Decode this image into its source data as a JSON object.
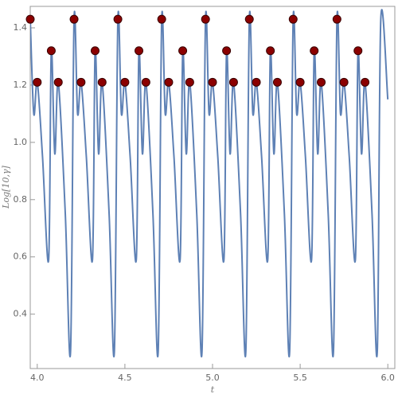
{
  "chart_data": {
    "type": "line",
    "xlabel": "t",
    "ylabel": "Log[10,γ]",
    "xlim": [
      3.96,
      6.04
    ],
    "ylim": [
      0.21,
      1.475
    ],
    "xticks": [
      {
        "value": 4,
        "label": "4.0"
      },
      {
        "value": 4.5,
        "label": "4.5"
      },
      {
        "value": 5,
        "label": "5.0"
      },
      {
        "value": 5.5,
        "label": "5.5"
      },
      {
        "value": 6,
        "label": "6.0"
      }
    ],
    "yticks": [
      0.4,
      0.6,
      0.8,
      {
        "value": 1,
        "label": "1.0"
      },
      1.2,
      1.4
    ],
    "series": [
      {
        "type": "line",
        "color": "#5e81b5",
        "x": [
          3.96,
          3.98,
          4.0,
          4.03,
          4.065,
          4.08,
          4.1,
          4.12,
          4.16,
          4.19,
          4.21,
          4.23,
          4.25,
          4.28,
          4.315,
          4.33,
          4.35,
          4.37,
          4.41,
          4.44,
          4.46,
          4.48,
          4.5,
          4.53,
          4.565,
          4.58,
          4.6,
          4.62,
          4.66,
          4.69,
          4.71,
          4.73,
          4.75,
          4.78,
          4.815,
          4.83,
          4.85,
          4.87,
          4.91,
          4.94,
          4.96,
          4.98,
          5.0,
          5.03,
          5.065,
          5.08,
          5.1,
          5.12,
          5.16,
          5.19,
          5.21,
          5.23,
          5.25,
          5.28,
          5.315,
          5.33,
          5.35,
          5.37,
          5.41,
          5.44,
          5.46,
          5.48,
          5.5,
          5.53,
          5.565,
          5.58,
          5.6,
          5.62,
          5.66,
          5.69,
          5.71,
          5.73,
          5.75,
          5.78,
          5.815,
          5.83,
          5.85,
          5.87,
          5.91,
          5.94,
          5.96,
          6.0
        ],
        "values": [
          1.43,
          1.1,
          1.21,
          0.95,
          0.59,
          1.32,
          0.96,
          1.21,
          0.75,
          0.27,
          1.43,
          1.1,
          1.21,
          0.95,
          0.59,
          1.32,
          0.96,
          1.21,
          0.75,
          0.27,
          1.43,
          1.1,
          1.21,
          0.95,
          0.59,
          1.32,
          0.96,
          1.21,
          0.75,
          0.27,
          1.43,
          1.1,
          1.21,
          0.95,
          0.59,
          1.32,
          0.96,
          1.21,
          0.75,
          0.27,
          1.43,
          1.1,
          1.21,
          0.95,
          0.59,
          1.32,
          0.96,
          1.21,
          0.75,
          0.27,
          1.43,
          1.1,
          1.21,
          0.95,
          0.59,
          1.32,
          0.96,
          1.21,
          0.75,
          0.27,
          1.43,
          1.1,
          1.21,
          0.95,
          0.59,
          1.32,
          0.96,
          1.21,
          0.75,
          0.27,
          1.43,
          1.1,
          1.21,
          0.95,
          0.59,
          1.32,
          0.96,
          1.21,
          0.75,
          0.27,
          1.43,
          1.15
        ]
      },
      {
        "type": "scatter",
        "color": "#8b0000",
        "x": [
          3.96,
          4.0,
          4.08,
          4.12,
          4.21,
          4.25,
          4.33,
          4.37,
          4.46,
          4.5,
          4.58,
          4.62,
          4.71,
          4.75,
          4.83,
          4.87,
          4.96,
          5.0,
          5.08,
          5.12,
          5.21,
          5.25,
          5.33,
          5.37,
          5.46,
          5.5,
          5.58,
          5.62,
          5.71,
          5.75,
          5.83,
          5.87
        ],
        "values": [
          1.43,
          1.21,
          1.32,
          1.21,
          1.43,
          1.21,
          1.32,
          1.21,
          1.43,
          1.21,
          1.32,
          1.21,
          1.43,
          1.21,
          1.32,
          1.21,
          1.43,
          1.21,
          1.32,
          1.21,
          1.43,
          1.21,
          1.32,
          1.21,
          1.43,
          1.21,
          1.32,
          1.21,
          1.43,
          1.21,
          1.32,
          1.21
        ]
      }
    ]
  }
}
